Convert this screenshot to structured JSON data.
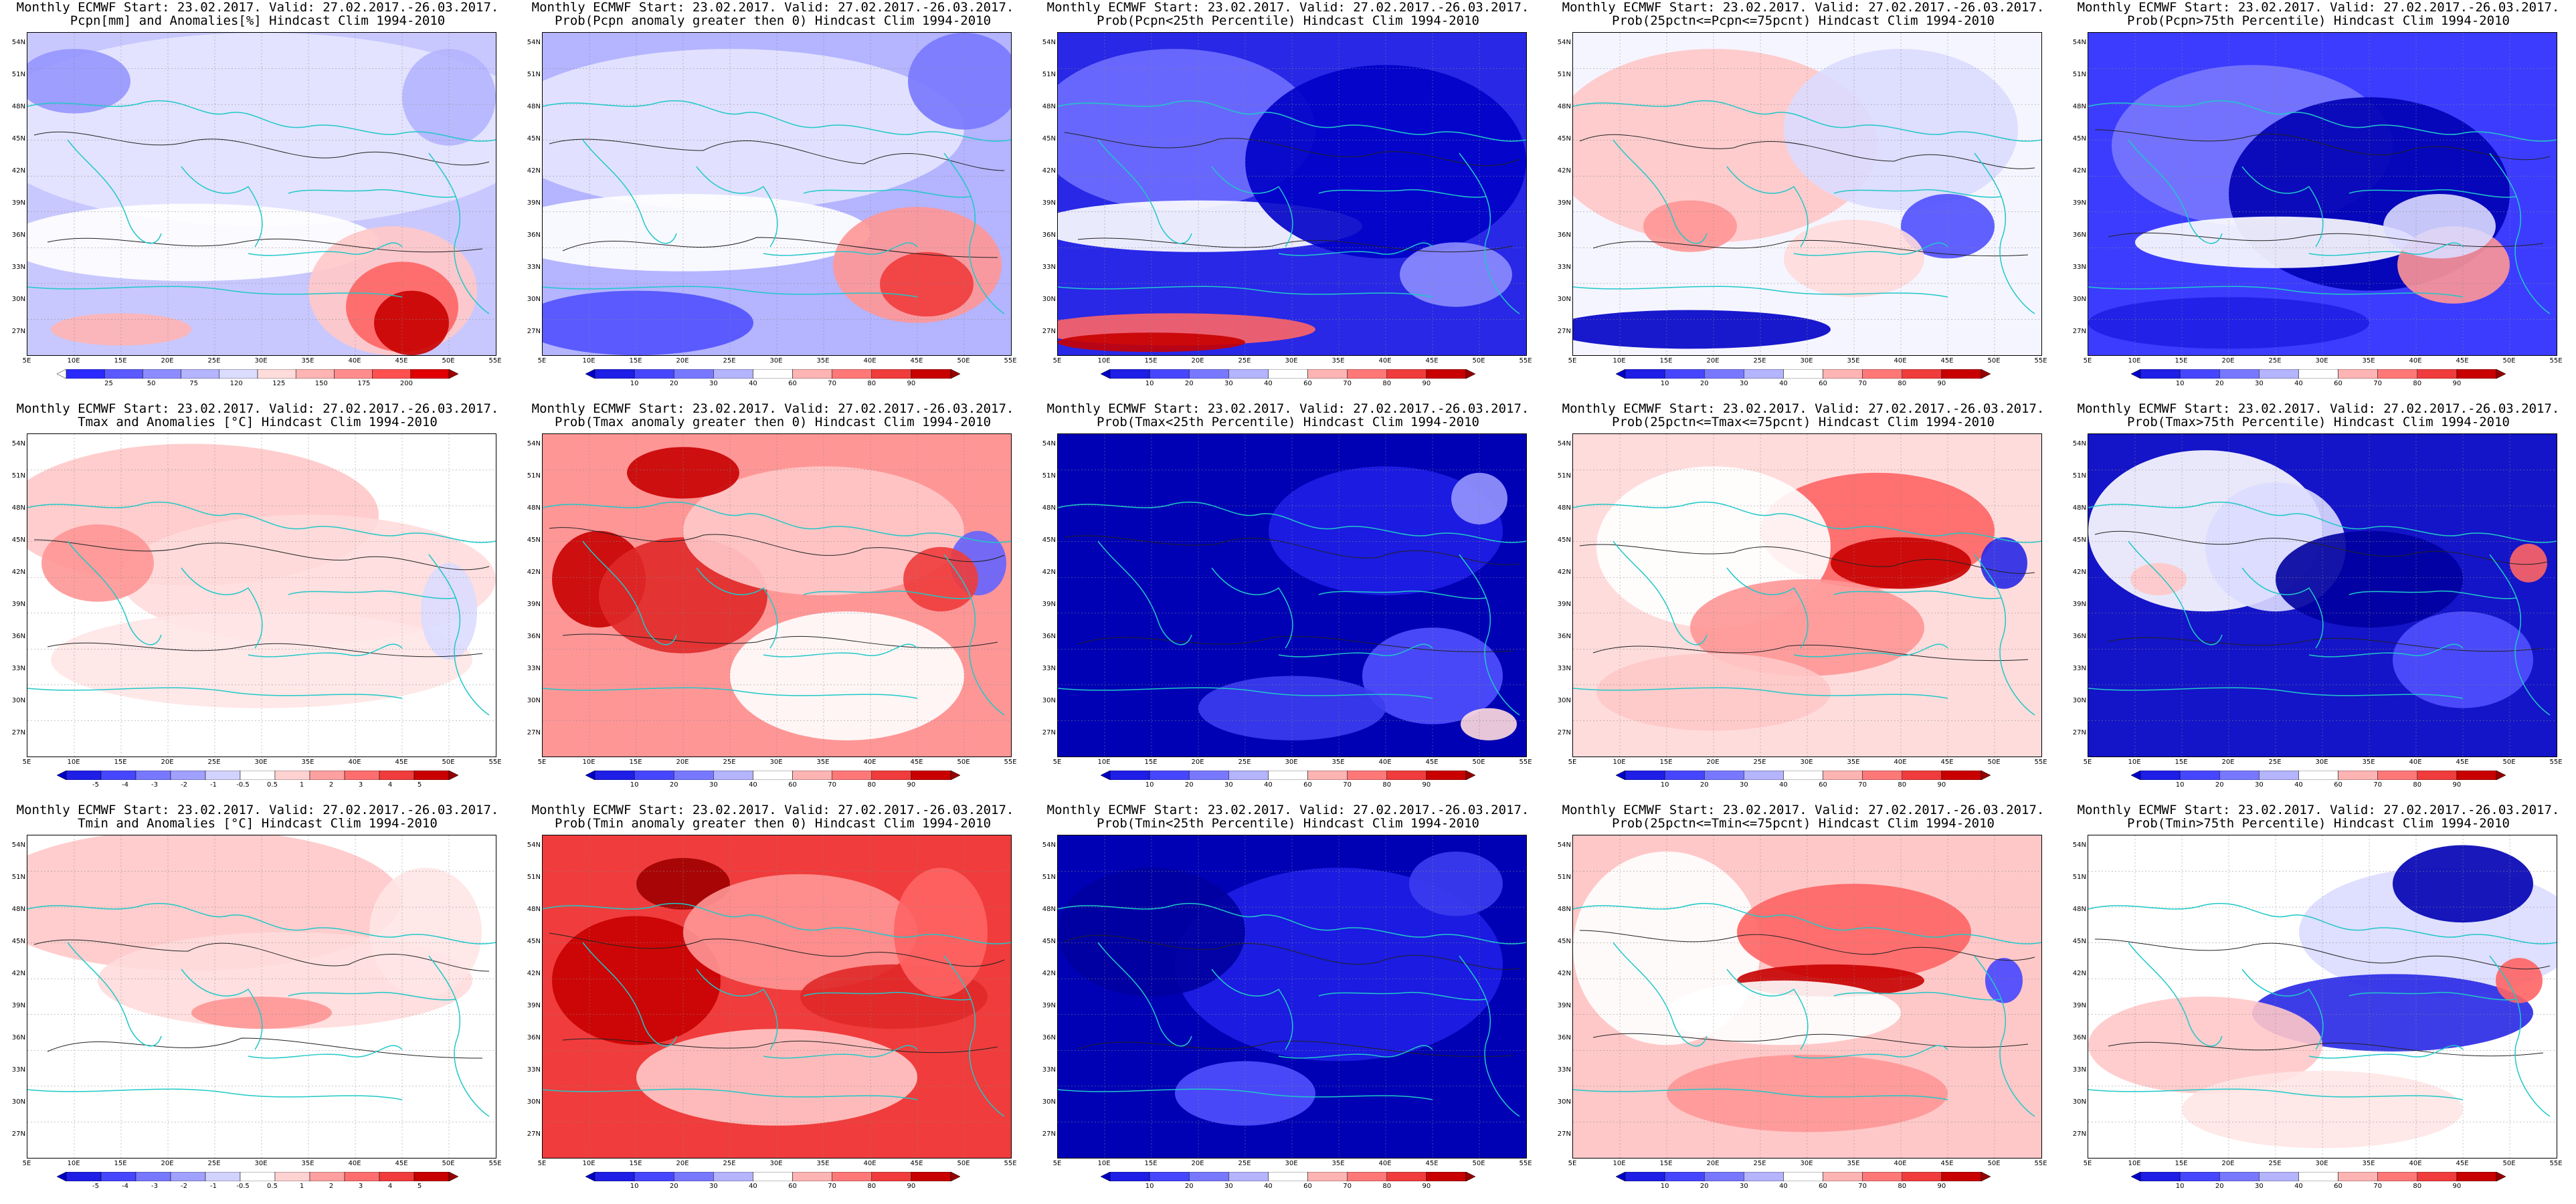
{
  "common": {
    "title_line1": "Monthly ECMWF Start: 23.02.2017. Valid: 27.02.2017.-26.03.2017.",
    "lat_labels": [
      "54N",
      "51N",
      "48N",
      "45N",
      "42N",
      "39N",
      "36N",
      "33N",
      "30N",
      "27N"
    ],
    "lon_labels": [
      "5E",
      "10E",
      "15E",
      "20E",
      "25E",
      "30E",
      "35E",
      "40E",
      "45E",
      "50E",
      "55E"
    ]
  },
  "colorbars": {
    "pcpn_anom": {
      "ticks": [
        "25",
        "50",
        "75",
        "120",
        "125",
        "150",
        "175",
        "200"
      ],
      "colors": [
        "#ffffff",
        "#2a2aff",
        "#5a5aff",
        "#8c8cff",
        "#b4b4ff",
        "#dcdcff",
        "#ffdcdc",
        "#ffb4b4",
        "#ff8c8c",
        "#ff5050",
        "#e00000",
        "#a00000"
      ]
    },
    "temp_anom": {
      "ticks": [
        "-5",
        "-4",
        "-3",
        "-2",
        "-1",
        "-0.5",
        "0.5",
        "1",
        "2",
        "3",
        "4",
        "5"
      ],
      "colors": [
        "#0000c8",
        "#1e1ee6",
        "#4646ff",
        "#7878ff",
        "#a0a0ff",
        "#d2d2ff",
        "#ffffff",
        "#ffd2d2",
        "#ffa0a0",
        "#ff6e6e",
        "#f03c3c",
        "#c80000",
        "#960000"
      ]
    },
    "prob": {
      "ticks": [
        "10",
        "20",
        "30",
        "40",
        "60",
        "70",
        "80",
        "90"
      ],
      "colors": [
        "#0000c8",
        "#1e1ee6",
        "#4646ff",
        "#7878ff",
        "#b4b4ff",
        "#ffffff",
        "#ffb4b4",
        "#ff7878",
        "#f03c3c",
        "#c80000",
        "#960000"
      ]
    }
  },
  "panels": [
    {
      "title2": "Pcpn[mm] and Anomalies[%] Hindcast Clim 1994-2010",
      "theme": "pcpn_anom",
      "cbar": "pcpn_anom"
    },
    {
      "title2": "Prob(Pcpn anomaly greater then 0) Hindcast Clim 1994-2010",
      "theme": "pcpn_prob_gt0",
      "cbar": "prob"
    },
    {
      "title2": "Prob(Pcpn<25th Percentile) Hindcast Clim 1994-2010",
      "theme": "pcpn_lt25",
      "cbar": "prob"
    },
    {
      "title2": "Prob(25pctn<=Pcpn<=75pcnt) Hindcast Clim 1994-2010",
      "theme": "pcpn_mid",
      "cbar": "prob"
    },
    {
      "title2": "Prob(Pcpn>75th Percentile) Hindcast Clim 1994-2010",
      "theme": "pcpn_gt75",
      "cbar": "prob"
    },
    {
      "title2": "Tmax and Anomalies [°C] Hindcast Clim 1994-2010",
      "theme": "tmax_anom",
      "cbar": "temp_anom"
    },
    {
      "title2": "Prob(Tmax anomaly greater then 0) Hindcast Clim 1994-2010",
      "theme": "tmax_prob_gt0",
      "cbar": "prob"
    },
    {
      "title2": "Prob(Tmax<25th Percentile) Hindcast Clim 1994-2010",
      "theme": "tmax_lt25",
      "cbar": "prob"
    },
    {
      "title2": "Prob(25pctn<=Tmax<=75pcnt) Hindcast Clim 1994-2010",
      "theme": "tmax_mid",
      "cbar": "prob"
    },
    {
      "title2": "Prob(Tmax>75th Percentile) Hindcast Clim 1994-2010",
      "theme": "tmax_gt75",
      "cbar": "prob"
    },
    {
      "title2": "Tmin and Anomalies [°C] Hindcast Clim 1994-2010",
      "theme": "tmin_anom",
      "cbar": "temp_anom"
    },
    {
      "title2": "Prob(Tmin anomaly greater then 0) Hindcast Clim 1994-2010",
      "theme": "tmin_prob_gt0",
      "cbar": "prob"
    },
    {
      "title2": "Prob(Tmin<25th Percentile) Hindcast Clim 1994-2010",
      "theme": "tmin_lt25",
      "cbar": "prob"
    },
    {
      "title2": "Prob(25pctn<=Tmin<=75pcnt) Hindcast Clim 1994-2010",
      "theme": "tmin_mid",
      "cbar": "prob"
    },
    {
      "title2": "Prob(Tmin>75th Percentile) Hindcast Clim 1994-2010",
      "theme": "tmin_gt75",
      "cbar": "prob"
    }
  ]
}
